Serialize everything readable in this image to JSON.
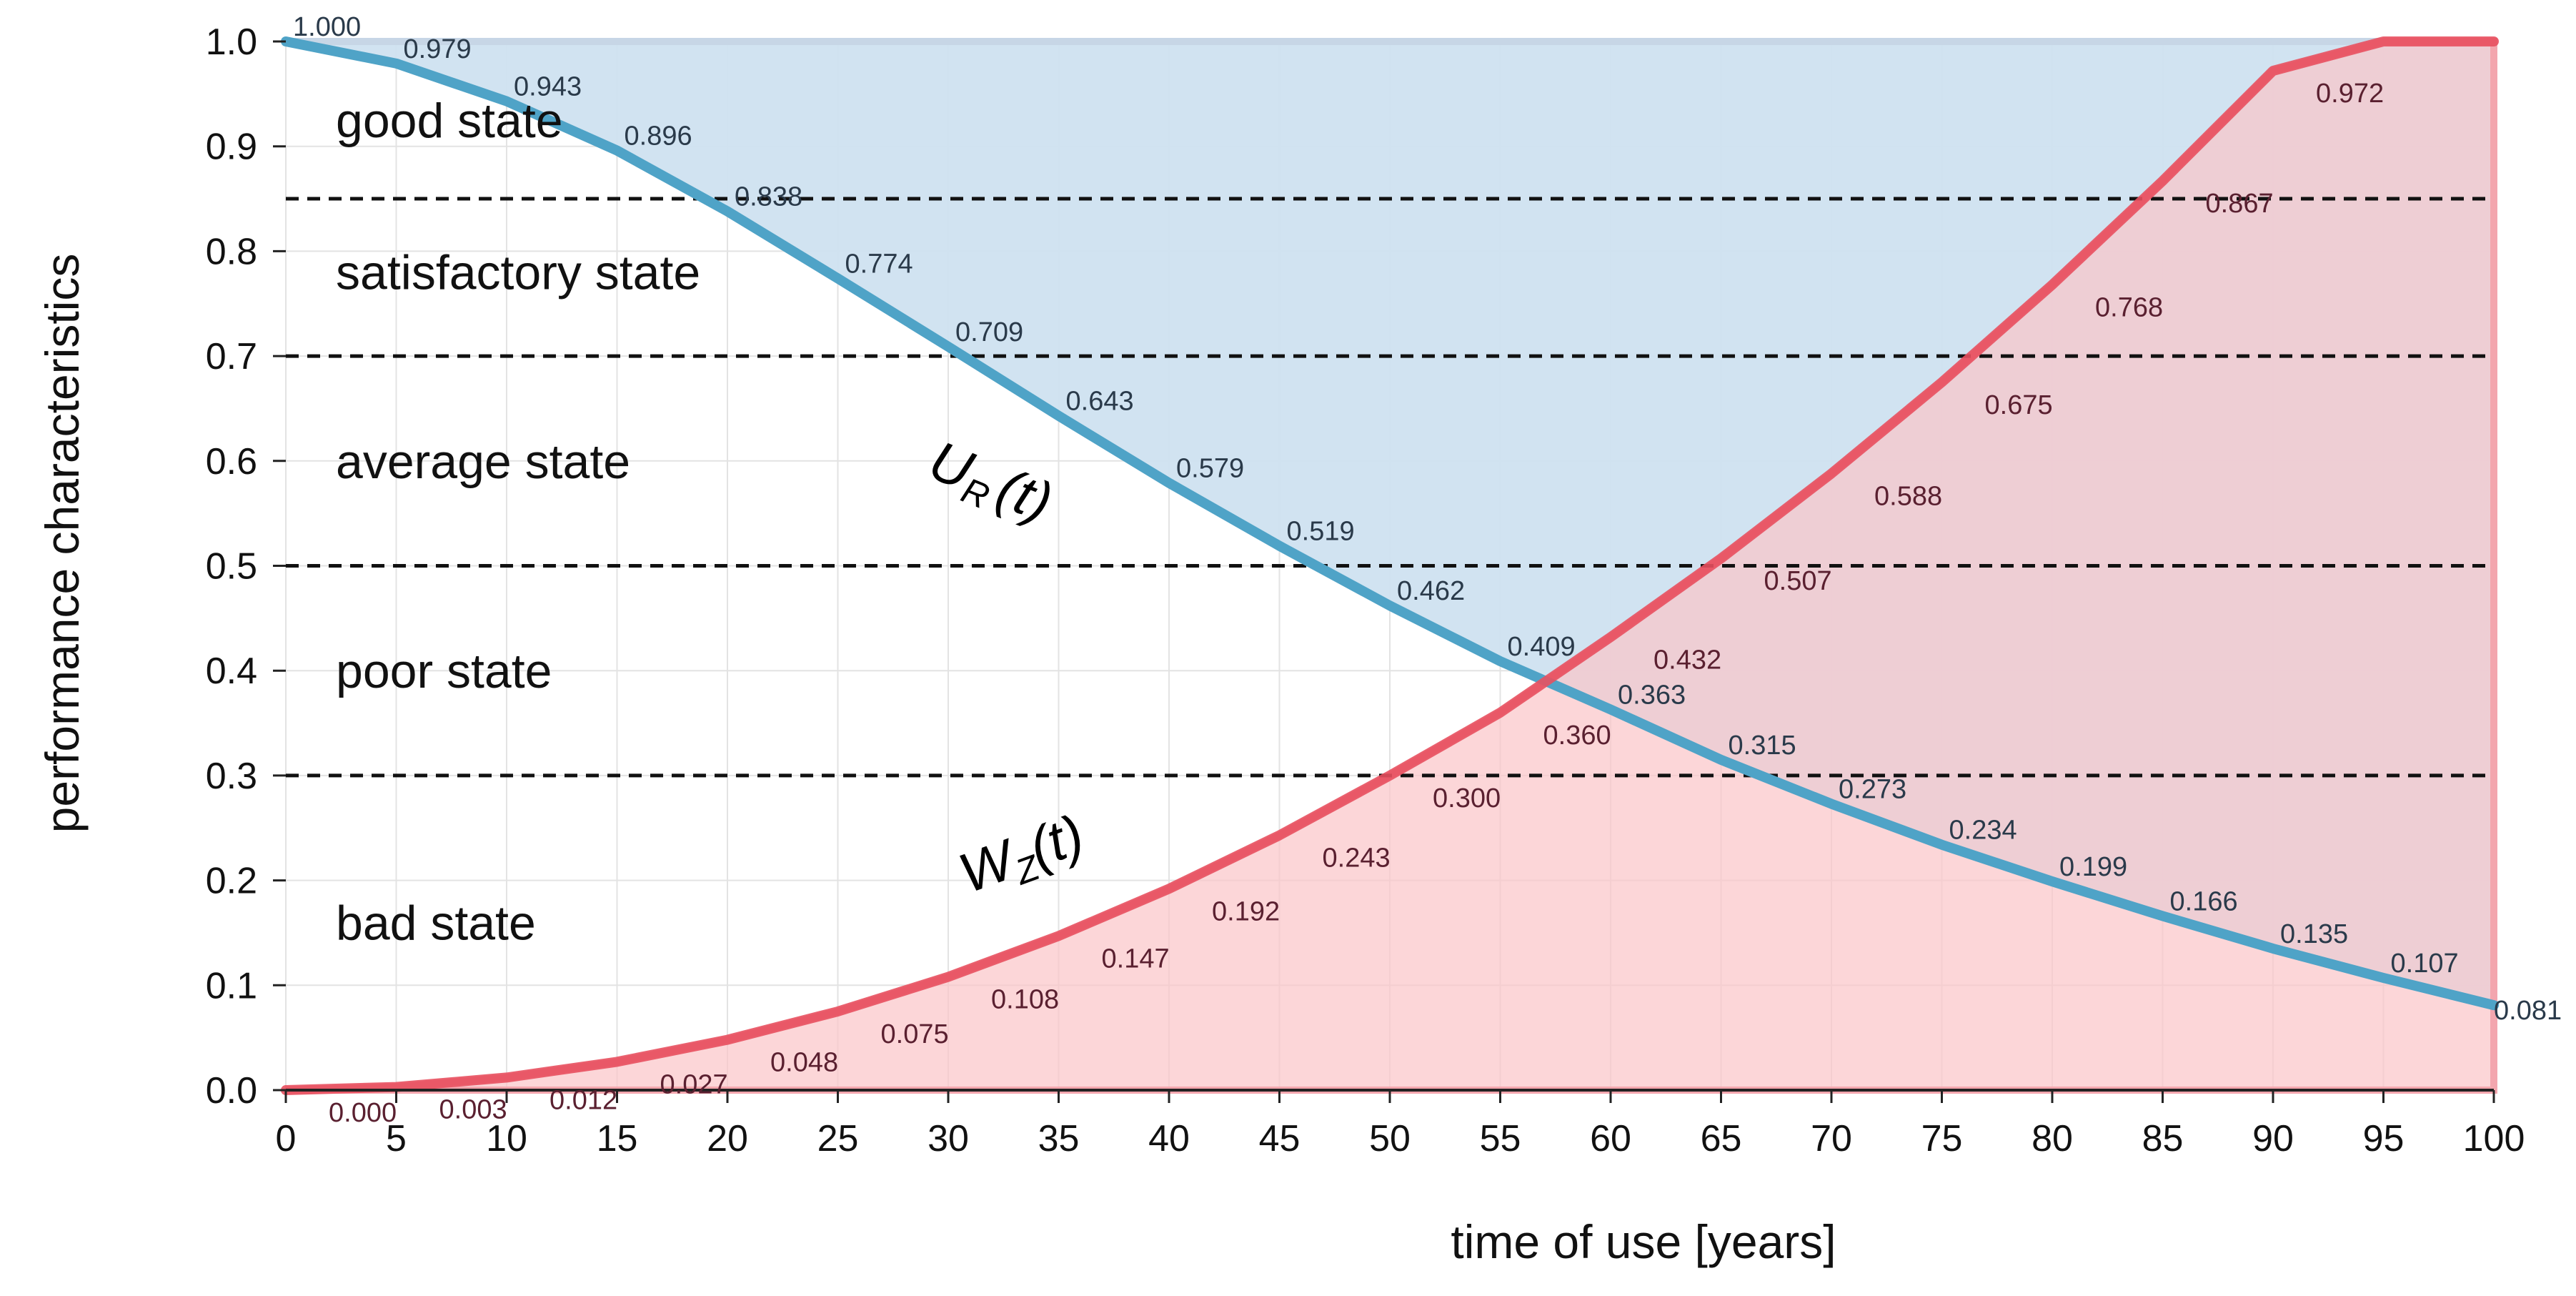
{
  "chart_data": {
    "type": "line",
    "xlabel": "time of use [years]",
    "ylabel": "performance characteristics",
    "xlim": [
      0,
      100
    ],
    "ylim": [
      0,
      1
    ],
    "x_ticks": [
      "0",
      "5",
      "10",
      "15",
      "20",
      "25",
      "30",
      "35",
      "40",
      "45",
      "50",
      "55",
      "60",
      "65",
      "70",
      "75",
      "80",
      "85",
      "90",
      "95",
      "100"
    ],
    "y_ticks": [
      "0.0",
      "0.1",
      "0.2",
      "0.3",
      "0.4",
      "0.5",
      "0.6",
      "0.7",
      "0.8",
      "0.9",
      "1.0"
    ],
    "thresholds": [
      0.3,
      0.5,
      0.7,
      0.85
    ],
    "states": [
      {
        "label": "good state",
        "y": 0.925
      },
      {
        "label": "satisfactory state",
        "y": 0.78
      },
      {
        "label": "average state",
        "y": 0.6
      },
      {
        "label": "poor state",
        "y": 0.4
      },
      {
        "label": "bad state",
        "y": 0.16
      }
    ],
    "series": [
      {
        "name": "U",
        "subscript": "R",
        "suffix": "(t)",
        "color": "#4fa3c7",
        "fill": "#cfe1f0",
        "x": [
          0,
          5,
          10,
          15,
          20,
          25,
          30,
          35,
          40,
          45,
          50,
          55,
          60,
          65,
          70,
          75,
          80,
          85,
          90,
          95,
          100
        ],
        "values": [
          1.0,
          0.979,
          0.943,
          0.896,
          0.838,
          0.774,
          0.709,
          0.643,
          0.579,
          0.519,
          0.462,
          0.409,
          0.363,
          0.315,
          0.273,
          0.234,
          0.199,
          0.166,
          0.135,
          0.107,
          0.081
        ],
        "labels": [
          "1.000",
          "0.979",
          "0.943",
          "0.896",
          "0.838",
          "0.774",
          "0.709",
          "0.643",
          "0.579",
          "0.519",
          "0.462",
          "0.409",
          "0.363",
          "0.315",
          "0.273",
          "0.234",
          "0.199",
          "0.166",
          "0.135",
          "0.107",
          "0.081"
        ]
      },
      {
        "name": "W",
        "subscript": "Z",
        "suffix": "(t)",
        "color": "#e8505f",
        "fill": "#fbc4c8",
        "x": [
          0,
          5,
          10,
          15,
          20,
          25,
          30,
          35,
          40,
          45,
          50,
          55,
          60,
          65,
          70,
          75,
          80,
          85,
          90,
          95,
          100
        ],
        "values": [
          0.0,
          0.003,
          0.012,
          0.027,
          0.048,
          0.075,
          0.108,
          0.147,
          0.192,
          0.243,
          0.3,
          0.36,
          0.432,
          0.507,
          0.588,
          0.675,
          0.768,
          0.867,
          0.972,
          1.0,
          1.0
        ],
        "labels": [
          "0.000",
          "0.003",
          "0.012",
          "0.027",
          "0.048",
          "0.075",
          "0.108",
          "0.147",
          "0.192",
          "0.243",
          "0.300",
          "0.360",
          "0.432",
          "0.507",
          "0.588",
          "0.675",
          "0.768",
          "0.867",
          "0.972"
        ]
      }
    ]
  }
}
